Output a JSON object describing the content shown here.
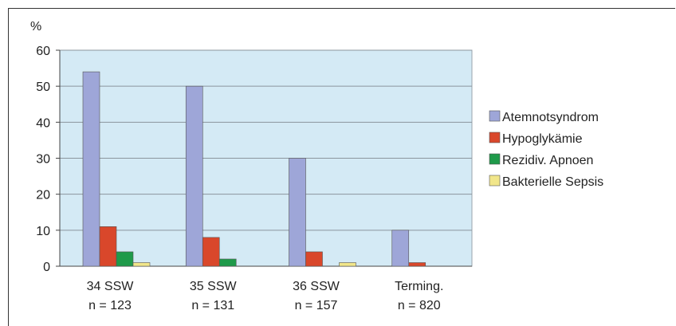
{
  "chart_data": {
    "type": "bar",
    "ylabel": "%",
    "ylim": [
      0,
      60
    ],
    "yticks": [
      0,
      10,
      20,
      30,
      40,
      50,
      60
    ],
    "grid": true,
    "legend_position": "right",
    "categories": [
      [
        "34 SSW",
        "n = 123"
      ],
      [
        "35 SSW",
        "n = 131"
      ],
      [
        "36 SSW",
        "n = 157"
      ],
      [
        "Terming.",
        "n = 820"
      ]
    ],
    "series": [
      {
        "name": "Atemnotsyndrom",
        "color": "#9ea6d8",
        "values": [
          54,
          50,
          30,
          10
        ]
      },
      {
        "name": "Hypoglykämie",
        "color": "#d9472b",
        "values": [
          11,
          8,
          4,
          1
        ]
      },
      {
        "name": "Rezidiv. Apnoen",
        "color": "#1f9a4a",
        "values": [
          4,
          2,
          0,
          0
        ]
      },
      {
        "name": "Bakterielle Sepsis",
        "color": "#f1e68a",
        "values": [
          1,
          0,
          1,
          0
        ]
      }
    ],
    "plot_background": "#d4eaf5"
  }
}
